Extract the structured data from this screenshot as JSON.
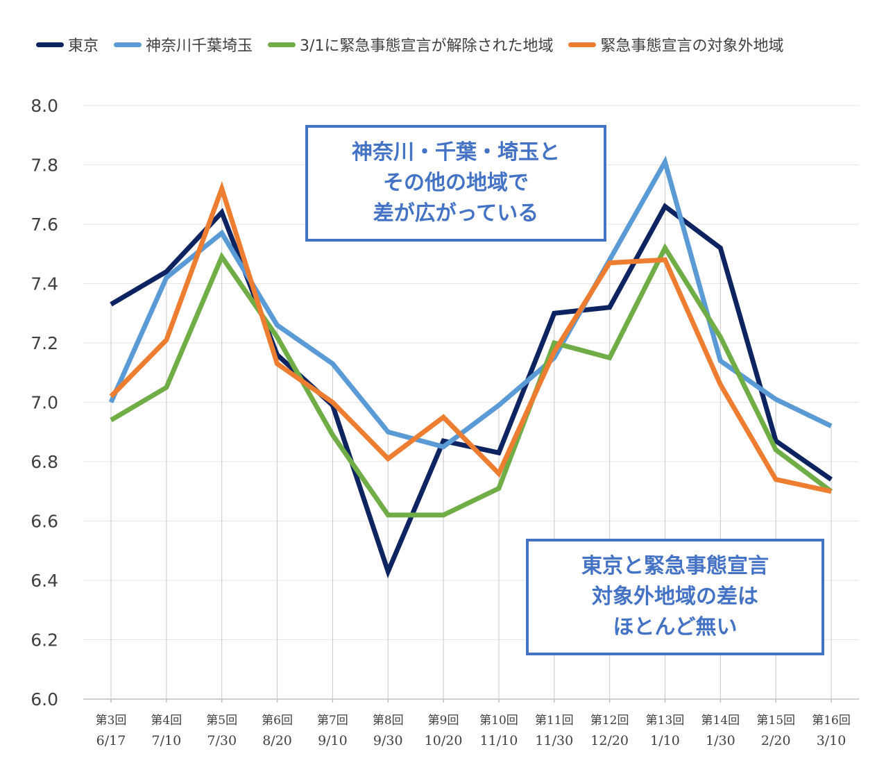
{
  "chart_data": {
    "type": "line",
    "categories": [
      [
        "第3回",
        "6/17"
      ],
      [
        "第4回",
        "7/10"
      ],
      [
        "第5回",
        "7/30"
      ],
      [
        "第6回",
        "8/20"
      ],
      [
        "第7回",
        "9/10"
      ],
      [
        "第8回",
        "9/30"
      ],
      [
        "第9回",
        "10/20"
      ],
      [
        "第10回",
        "11/10"
      ],
      [
        "第11回",
        "11/30"
      ],
      [
        "第12回",
        "12/20"
      ],
      [
        "第13回",
        "1/10"
      ],
      [
        "第14回",
        "1/30"
      ],
      [
        "第15回",
        "2/20"
      ],
      [
        "第16回",
        "3/10"
      ]
    ],
    "ylim": [
      6.0,
      8.0
    ],
    "yticks": [
      "6.0",
      "6.2",
      "6.4",
      "6.6",
      "6.8",
      "7.0",
      "7.2",
      "7.4",
      "7.6",
      "7.8",
      "8.0"
    ],
    "grid": "horizontal",
    "legend_position": "top",
    "series": [
      {
        "name": "東京",
        "color": "#0e2461",
        "values": [
          7.33,
          7.44,
          7.64,
          7.16,
          6.99,
          6.43,
          6.87,
          6.83,
          7.3,
          7.32,
          7.66,
          7.52,
          6.87,
          6.74
        ]
      },
      {
        "name": "神奈川千葉埼玉",
        "color": "#5b9bd5",
        "values": [
          7.0,
          7.42,
          7.57,
          7.26,
          7.13,
          6.9,
          6.85,
          6.99,
          7.15,
          7.48,
          7.81,
          7.14,
          7.01,
          6.92
        ]
      },
      {
        "name": "3/1に緊急事態宣言が解除された地域",
        "color": "#70ad47",
        "values": [
          6.94,
          7.05,
          7.49,
          7.22,
          6.89,
          6.62,
          6.62,
          6.71,
          7.2,
          7.15,
          7.52,
          7.22,
          6.84,
          6.7
        ]
      },
      {
        "name": "緊急事態宣言の対象外地域",
        "color": "#ed7d31",
        "values": [
          7.02,
          7.21,
          7.72,
          7.13,
          7.0,
          6.81,
          6.95,
          6.76,
          7.17,
          7.47,
          7.48,
          7.06,
          6.74,
          6.7
        ]
      }
    ]
  },
  "annotations": {
    "box1": [
      "神奈川・千葉・埼玉と",
      "その他の地域で",
      "差が広がっている"
    ],
    "box2": [
      "東京と緊急事態宣言",
      "対象外地域の差は",
      "ほとんど無い"
    ],
    "color": "#4472c4"
  }
}
